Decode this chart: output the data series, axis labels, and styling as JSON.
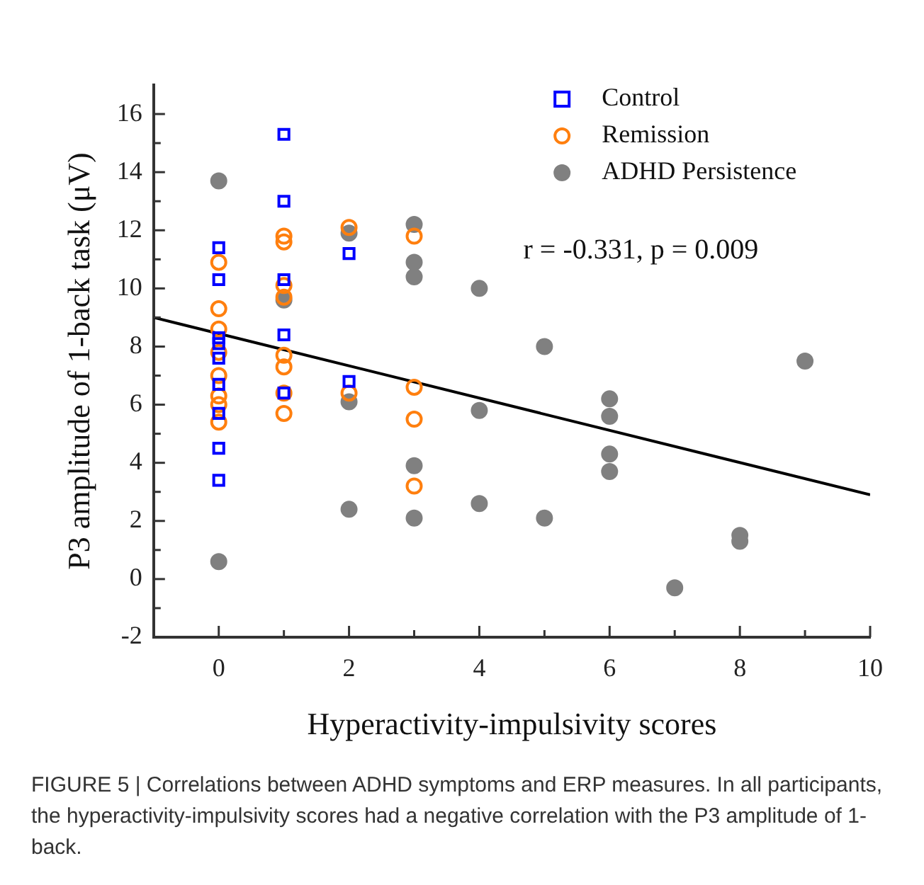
{
  "chart_data": {
    "type": "scatter",
    "xlabel": "Hyperactivity-impulsivity scores",
    "ylabel": "P3 amplitude of 1-back task (μV)",
    "xlim": [
      -1,
      10
    ],
    "xticks": [
      0,
      {
        "value": 1,
        "label": null
      },
      2,
      {
        "value": 3,
        "label": null
      },
      4,
      {
        "value": 5,
        "label": null
      },
      6,
      {
        "value": 7,
        "label": null
      },
      8,
      {
        "value": 9,
        "label": null
      },
      10
    ],
    "ylim": [
      -2,
      17
    ],
    "yticks": [
      -2,
      {
        "value": -1,
        "label": null
      },
      0,
      {
        "value": 1,
        "label": null
      },
      2,
      {
        "value": 3,
        "label": null
      },
      4,
      {
        "value": 5,
        "label": null
      },
      6,
      {
        "value": 7,
        "label": null
      },
      8,
      {
        "value": 9,
        "label": null
      },
      10,
      {
        "value": 11,
        "label": null
      },
      12,
      {
        "value": 13,
        "label": null
      },
      14,
      {
        "value": 15,
        "label": null
      },
      16
    ],
    "grid": false,
    "legend": "top right",
    "series": [
      {
        "name": "Control",
        "color": "#0000ff",
        "marker": "square",
        "x": [
          0,
          0,
          0,
          0,
          0,
          0,
          0,
          0,
          0,
          1,
          1,
          1,
          1,
          1,
          2,
          2
        ],
        "values": [
          11.4,
          10.3,
          8.3,
          8.1,
          7.6,
          6.7,
          5.7,
          4.5,
          3.4,
          15.3,
          13.0,
          10.3,
          8.4,
          6.4,
          11.2,
          6.8
        ]
      },
      {
        "name": "Remission",
        "color": "#ff7f0e",
        "marker": "circle",
        "x": [
          0,
          0,
          0,
          0,
          0,
          0,
          0,
          0,
          1,
          1,
          1,
          1,
          1,
          1,
          1,
          1,
          2,
          2,
          3,
          3,
          3,
          3
        ],
        "values": [
          10.9,
          9.3,
          8.6,
          7.8,
          7.0,
          6.3,
          6.0,
          5.4,
          11.8,
          11.6,
          10.1,
          9.7,
          7.7,
          7.3,
          6.4,
          5.7,
          12.1,
          6.4,
          11.8,
          6.6,
          5.5,
          3.2
        ]
      },
      {
        "name": "ADHD Persistence",
        "color": "#808080",
        "marker": "circle",
        "x": [
          0,
          0,
          1,
          2,
          2,
          2,
          3,
          3,
          3,
          3,
          3,
          4,
          4,
          4,
          5,
          5,
          6,
          6,
          6,
          6,
          7,
          8,
          8,
          9
        ],
        "values": [
          13.7,
          0.6,
          9.6,
          11.9,
          6.1,
          2.4,
          12.2,
          10.9,
          10.4,
          3.9,
          2.1,
          10.0,
          5.8,
          2.6,
          8.0,
          2.1,
          6.2,
          5.6,
          4.3,
          3.7,
          -0.3,
          1.5,
          1.3,
          7.5
        ]
      },
      {
        "type": "line",
        "color": "#000000",
        "marker": "none",
        "line_style": "solid",
        "x": [
          -1,
          10
        ],
        "values": [
          9.0,
          2.9
        ]
      }
    ],
    "annotations": [
      "r = -0.331, p = 0.009",
      "FIGURE 5 | Correlations between ADHD symptoms and ERP measures. In all participants, the hyperactivity-impulsivity scores had a negative correlation with the P3 amplitude of 1-back."
    ]
  }
}
